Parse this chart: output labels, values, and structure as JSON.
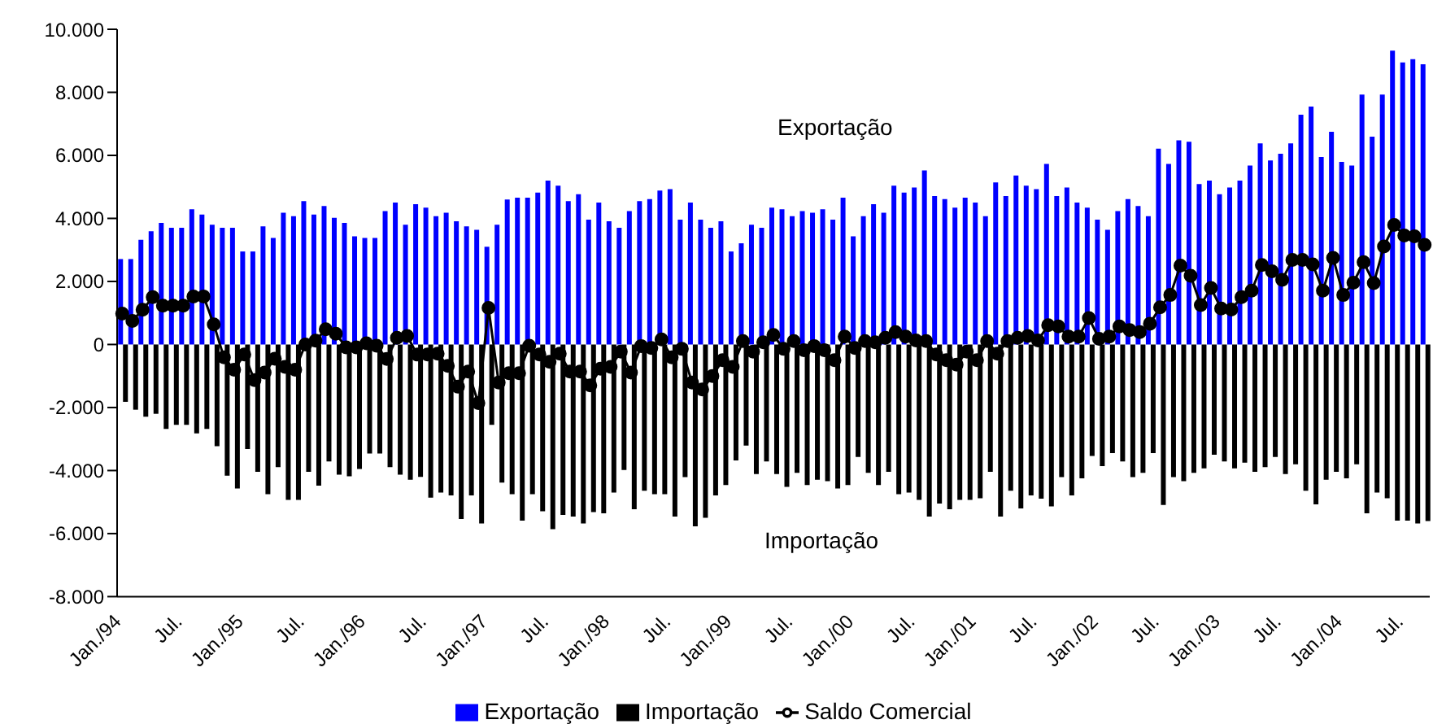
{
  "chart_data": {
    "type": "bar",
    "categories": [
      "Jan./94",
      null,
      null,
      null,
      null,
      null,
      "Jul.",
      null,
      null,
      null,
      null,
      null,
      "Jan./95",
      null,
      null,
      null,
      null,
      null,
      "Jul.",
      null,
      null,
      null,
      null,
      null,
      "Jan./96",
      null,
      null,
      null,
      null,
      null,
      "Jul.",
      null,
      null,
      null,
      null,
      null,
      "Jan./97",
      null,
      null,
      null,
      null,
      null,
      "Jul.",
      null,
      null,
      null,
      null,
      null,
      "Jan./98",
      null,
      null,
      null,
      null,
      null,
      "Jul.",
      null,
      null,
      null,
      null,
      null,
      "Jan./99",
      null,
      null,
      null,
      null,
      null,
      "Jul.",
      null,
      null,
      null,
      null,
      null,
      "Jan./00",
      null,
      null,
      null,
      null,
      null,
      "Jul.",
      null,
      null,
      null,
      null,
      null,
      "Jan./01",
      null,
      null,
      null,
      null,
      null,
      "Jul.",
      null,
      null,
      null,
      null,
      null,
      "Jan./02",
      null,
      null,
      null,
      null,
      null,
      "Jul.",
      null,
      null,
      null,
      null,
      null,
      "Jan./03",
      null,
      null,
      null,
      null,
      null,
      "Jul.",
      null,
      null,
      null,
      null,
      null,
      "Jan./04",
      null,
      null,
      null,
      null,
      null,
      "Jul.",
      null,
      null
    ],
    "series": [
      {
        "name": "Exportação",
        "color": "#0000ff",
        "values": [
          2710,
          2710,
          3320,
          3590,
          3860,
          3700,
          3700,
          4290,
          4120,
          3800,
          3700,
          3700,
          2950,
          2950,
          3750,
          3380,
          4180,
          4070,
          4550,
          4120,
          4390,
          4020,
          3860,
          3430,
          3380,
          3380,
          4230,
          4500,
          3800,
          4450,
          4340,
          4070,
          4180,
          3910,
          3750,
          3640,
          3100,
          3800,
          4600,
          4660,
          4660,
          4820,
          5200,
          5040,
          4550,
          4770,
          3960,
          4500,
          3910,
          3700,
          4230,
          4550,
          4610,
          4880,
          4930,
          3960,
          4500,
          3960,
          3700,
          3910,
          2950,
          3210,
          3800,
          3700,
          4340,
          4290,
          4070,
          4230,
          4180,
          4290,
          3960,
          4660,
          3430,
          4070,
          4450,
          4180,
          5040,
          4820,
          4980,
          5520,
          4710,
          4610,
          4340,
          4660,
          4500,
          4070,
          5140,
          4710,
          5360,
          5040,
          4930,
          5730,
          4710,
          4980,
          4500,
          4340,
          3960,
          3640,
          4230,
          4610,
          4390,
          4070,
          6210,
          5730,
          6480,
          6430,
          5090,
          5200,
          4770,
          4980,
          5200,
          5680,
          6380,
          5840,
          6050,
          6380,
          7290,
          7550,
          5950,
          6750,
          5790,
          5680,
          7930,
          6590,
          7930,
          9320,
          8950,
          9050,
          8890
        ]
      },
      {
        "name": "Importação",
        "color": "#000000",
        "values": [
          -1820,
          -2070,
          -2290,
          -2200,
          -2680,
          -2550,
          -2550,
          -2820,
          -2680,
          -3230,
          -4160,
          -4570,
          -3320,
          -4040,
          -4750,
          -3890,
          -4930,
          -4930,
          -4040,
          -4480,
          -3710,
          -4130,
          -4180,
          -3950,
          -3460,
          -3460,
          -3890,
          -4130,
          -4290,
          -4200,
          -4860,
          -4700,
          -4790,
          -5540,
          -4790,
          -5680,
          -2550,
          -4380,
          -4750,
          -5590,
          -4750,
          -5290,
          -5860,
          -5410,
          -5460,
          -5680,
          -5320,
          -5360,
          -4700,
          -3980,
          -5230,
          -4640,
          -4750,
          -4750,
          -5460,
          -4210,
          -5770,
          -5500,
          -4790,
          -4460,
          -3680,
          -3210,
          -4110,
          -3710,
          -4110,
          -4520,
          -4070,
          -4460,
          -4290,
          -4340,
          -4570,
          -4460,
          -3570,
          -4070,
          -4460,
          -4040,
          -4750,
          -4700,
          -4930,
          -5460,
          -5050,
          -5230,
          -4930,
          -4930,
          -4880,
          -4040,
          -5460,
          -4640,
          -5200,
          -4790,
          -4890,
          -5140,
          -4210,
          -4790,
          -4250,
          -3540,
          -3860,
          -3450,
          -3710,
          -4210,
          -4070,
          -3450,
          -5090,
          -4210,
          -4340,
          -4070,
          -3930,
          -3500,
          -3710,
          -3930,
          -3750,
          -4040,
          -3890,
          -3570,
          -4110,
          -3800,
          -4640,
          -5070,
          -4290,
          -4040,
          -4250,
          -3800,
          -5360,
          -4700,
          -4880,
          -5590,
          -5590,
          -5680,
          -5600
        ]
      },
      {
        "name": "Saldo Comercial",
        "type": "line",
        "color": "#000000",
        "values": [
          980,
          750,
          1100,
          1500,
          1230,
          1230,
          1230,
          1520,
          1520,
          640,
          -410,
          -800,
          -320,
          -1130,
          -890,
          -450,
          -710,
          -800,
          0,
          120,
          480,
          340,
          -90,
          -90,
          40,
          -40,
          -460,
          210,
          270,
          -320,
          -320,
          -290,
          -680,
          -1340,
          -860,
          -1860,
          1160,
          -1210,
          -910,
          -910,
          -40,
          -320,
          -550,
          -290,
          -860,
          -860,
          -1300,
          -770,
          -710,
          -230,
          -890,
          -50,
          -110,
          160,
          -410,
          -140,
          -1210,
          -1430,
          -1000,
          -500,
          -710,
          110,
          -230,
          70,
          300,
          -140,
          110,
          -180,
          -50,
          -180,
          -500,
          250,
          -110,
          110,
          70,
          210,
          390,
          250,
          130,
          110,
          -320,
          -500,
          -640,
          -230,
          -500,
          110,
          -290,
          110,
          210,
          270,
          130,
          610,
          570,
          250,
          250,
          840,
          180,
          250,
          570,
          460,
          390,
          660,
          1180,
          1570,
          2500,
          2180,
          1250,
          1790,
          1140,
          1110,
          1500,
          1710,
          2520,
          2320,
          2050,
          2680,
          2680,
          2540,
          1710,
          2750,
          1570,
          1960,
          2610,
          1950,
          3110,
          3790,
          3460,
          3430,
          3160
        ]
      }
    ],
    "ylim": [
      -8000,
      10000
    ],
    "yticks": [
      {
        "value": -8000,
        "label": "-8.000"
      },
      {
        "value": -6000,
        "label": "-6.000"
      },
      {
        "value": -4000,
        "label": "-4.000"
      },
      {
        "value": -2000,
        "label": "-2.000"
      },
      0,
      {
        "value": 2000,
        "label": "2.000"
      },
      {
        "value": 4000,
        "label": "4.000"
      },
      {
        "value": 6000,
        "label": "6.000"
      },
      {
        "value": 8000,
        "label": "8.000"
      },
      {
        "value": 10000,
        "label": "10.000"
      }
    ],
    "annotations": [
      "Exportação",
      "Importação"
    ],
    "grid": false,
    "legend": "bottom",
    "marker": "circle",
    "line_style": "solid"
  }
}
